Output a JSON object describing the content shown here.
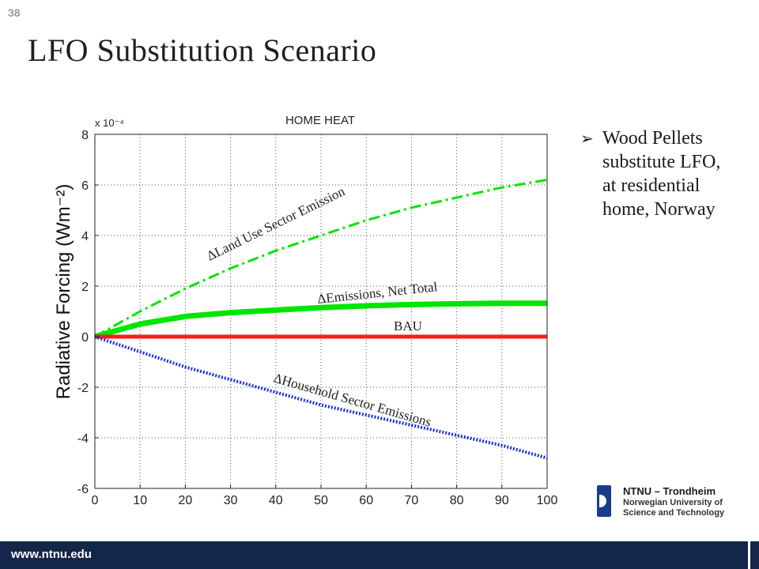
{
  "slide": {
    "number": "38",
    "title": "LFO Substitution Scenario"
  },
  "bullet": {
    "text": "Wood Pellets substitute LFO, at residential home, Norway"
  },
  "logo": {
    "line1": "NTNU – Trondheim",
    "line2": "Norwegian University of",
    "line3": "Science and Technology"
  },
  "footer": {
    "url": "www.ntnu.edu"
  },
  "colors": {
    "green": "#00e600",
    "red": "#ff1a1a",
    "blue": "#1a2ee6",
    "footer": "#14264a"
  },
  "chart_data": {
    "type": "line",
    "title": "HOME HEAT",
    "ylabel": "Radiative Forcing (Wm⁻²)",
    "exponent": "x 10⁻⁴",
    "xlim": [
      0,
      100
    ],
    "ylim": [
      -6,
      8
    ],
    "xticks": [
      0,
      10,
      20,
      30,
      40,
      50,
      60,
      70,
      80,
      90,
      100
    ],
    "yticks": [
      -6,
      -4,
      -2,
      0,
      2,
      4,
      6,
      8
    ],
    "grid": true,
    "x": [
      0,
      10,
      20,
      30,
      40,
      50,
      60,
      70,
      80,
      90,
      100
    ],
    "series": [
      {
        "name": "ΔLand Use Sector Emission",
        "style": "dashdot",
        "color": "#00e600",
        "values": [
          0,
          1.0,
          1.9,
          2.7,
          3.4,
          4.0,
          4.6,
          5.1,
          5.5,
          5.9,
          6.2
        ]
      },
      {
        "name": "ΔEmissions, Net Total",
        "style": "solid-thick",
        "color": "#00e600",
        "values": [
          0,
          0.5,
          0.8,
          0.95,
          1.05,
          1.15,
          1.22,
          1.27,
          1.3,
          1.32,
          1.32
        ]
      },
      {
        "name": "BAU",
        "style": "solid",
        "color": "#ff1a1a",
        "values": [
          0,
          0,
          0,
          0,
          0,
          0,
          0,
          0,
          0,
          0,
          0
        ]
      },
      {
        "name": "ΔHousehold Sector Emissions",
        "style": "dotted",
        "color": "#1a2ee6",
        "values": [
          0,
          -0.6,
          -1.2,
          -1.7,
          -2.2,
          -2.7,
          -3.1,
          -3.5,
          -3.9,
          -4.3,
          -4.8
        ]
      }
    ]
  }
}
